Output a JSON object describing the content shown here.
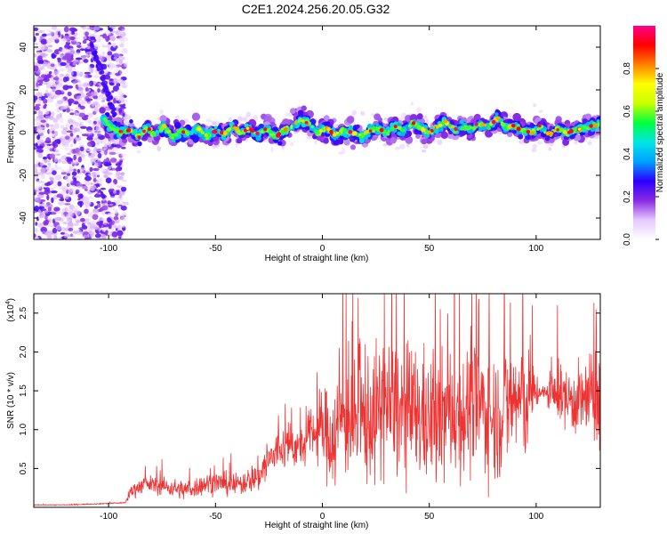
{
  "title": "C2E1.2024.256.20.05.G32",
  "chart_data": [
    {
      "type": "heatmap",
      "xlabel": "Height of straight line (km)",
      "ylabel": "Frequency (Hz)",
      "xlim": [
        -135,
        130
      ],
      "ylim": [
        -50,
        50
      ],
      "xticks": [
        -100,
        -50,
        0,
        50,
        100
      ],
      "yticks": [
        -40,
        -20,
        0,
        20,
        40
      ],
      "colorbar": {
        "label": "Normalized spectral amplitude",
        "range": [
          0,
          1
        ],
        "ticks": [
          "0.0",
          "0.2",
          "0.4",
          "0.6",
          "0.8"
        ],
        "colormap": [
          "#ffffff",
          "#e4c8ff",
          "#8a2be2",
          "#2a00ff",
          "#00a0ff",
          "#00e5e5",
          "#00ff40",
          "#c8ff00",
          "#ffff00",
          "#ff8000",
          "#ff0000",
          "#ff0088"
        ]
      },
      "ridge_frequency": [
        [
          -102,
          6
        ],
        [
          -98,
          2
        ],
        [
          -94,
          0
        ],
        [
          -90,
          1
        ],
        [
          -86,
          -2
        ],
        [
          -82,
          2
        ],
        [
          -78,
          -1
        ],
        [
          -74,
          3
        ],
        [
          -70,
          -2
        ],
        [
          -66,
          1
        ],
        [
          -62,
          -1
        ],
        [
          -58,
          2
        ],
        [
          -54,
          -2
        ],
        [
          -50,
          1
        ],
        [
          -46,
          -1
        ],
        [
          -42,
          3
        ],
        [
          -38,
          0
        ],
        [
          -34,
          2
        ],
        [
          -30,
          -1
        ],
        [
          -26,
          2
        ],
        [
          -22,
          -2
        ],
        [
          -18,
          1
        ],
        [
          -14,
          3
        ],
        [
          -10,
          6
        ],
        [
          -6,
          4
        ],
        [
          -2,
          0
        ],
        [
          2,
          2
        ],
        [
          6,
          -1
        ],
        [
          10,
          1
        ],
        [
          14,
          0
        ],
        [
          18,
          -2
        ],
        [
          22,
          1
        ],
        [
          26,
          2
        ],
        [
          30,
          0
        ],
        [
          34,
          3
        ],
        [
          38,
          1
        ],
        [
          42,
          5
        ],
        [
          46,
          2
        ],
        [
          50,
          0
        ],
        [
          54,
          3
        ],
        [
          58,
          5
        ],
        [
          62,
          1
        ],
        [
          66,
          3
        ],
        [
          70,
          2
        ],
        [
          74,
          4
        ],
        [
          78,
          3
        ],
        [
          82,
          7
        ],
        [
          86,
          2
        ],
        [
          90,
          3
        ],
        [
          94,
          1
        ],
        [
          98,
          0
        ],
        [
          102,
          3
        ],
        [
          106,
          -1
        ],
        [
          110,
          2
        ],
        [
          114,
          0
        ],
        [
          118,
          1
        ],
        [
          122,
          2
        ],
        [
          126,
          3
        ],
        [
          130,
          4
        ]
      ],
      "descending_trace": [
        [
          -108,
          42
        ],
        [
          -104,
          30
        ],
        [
          -100,
          16
        ],
        [
          -97,
          8
        ]
      ]
    },
    {
      "type": "line",
      "xlabel": "Height of straight line (km)",
      "ylabel": "SNR (10 * v/v)",
      "scale_label": "(x10",
      "scale_exp": "4",
      "xlim": [
        -135,
        130
      ],
      "ylim": [
        0,
        2.75
      ],
      "xticks": [
        -100,
        -50,
        0,
        50,
        100
      ],
      "yticks": [
        "0.5",
        "1.0",
        "1.5",
        "2.0",
        "2.5"
      ],
      "color": "#ee3333",
      "series": [
        {
          "x": [
            -135,
            -120,
            -100,
            -92,
            -90,
            -85,
            -80,
            -75,
            -70,
            -65,
            -60,
            -55,
            -50,
            -45,
            -40,
            -35,
            -30,
            -25,
            -20,
            -15,
            -10,
            -5,
            0,
            5,
            10,
            15,
            20,
            25,
            30,
            35,
            40,
            45,
            50,
            55,
            60,
            65,
            70,
            75,
            80,
            85,
            90,
            95,
            100,
            105,
            110,
            115,
            120,
            125,
            130
          ],
          "y": [
            0.03,
            0.03,
            0.05,
            0.06,
            0.2,
            0.28,
            0.3,
            0.27,
            0.25,
            0.22,
            0.25,
            0.3,
            0.32,
            0.3,
            0.28,
            0.35,
            0.4,
            0.6,
            0.75,
            0.8,
            0.75,
            0.95,
            1.0,
            0.9,
            1.2,
            1.05,
            1.1,
            1.2,
            1.3,
            1.25,
            1.15,
            1.2,
            1.1,
            1.1,
            1.25,
            1.2,
            1.3,
            1.3,
            1.15,
            1.25,
            1.4,
            1.35,
            1.5,
            1.45,
            1.45,
            1.4,
            1.35,
            1.4,
            1.3
          ]
        }
      ],
      "noise_amp_profile": [
        [
          -135,
          0.005
        ],
        [
          -92,
          0.01
        ],
        [
          -90,
          0.12
        ],
        [
          -35,
          0.2
        ],
        [
          -25,
          0.35
        ],
        [
          -5,
          0.35
        ],
        [
          5,
          0.9
        ],
        [
          30,
          1.1
        ],
        [
          95,
          1.0
        ],
        [
          102,
          0.08
        ],
        [
          108,
          0.35
        ],
        [
          130,
          0.8
        ]
      ],
      "highlight_peaks": [
        [
          -75,
          0.62
        ],
        [
          -26,
          0.82
        ],
        [
          8,
          2.05
        ],
        [
          20,
          2.1
        ],
        [
          29,
          2.75
        ],
        [
          40,
          2.15
        ],
        [
          73,
          2.6
        ],
        [
          110,
          2.6
        ],
        [
          128,
          2.55
        ]
      ]
    }
  ]
}
